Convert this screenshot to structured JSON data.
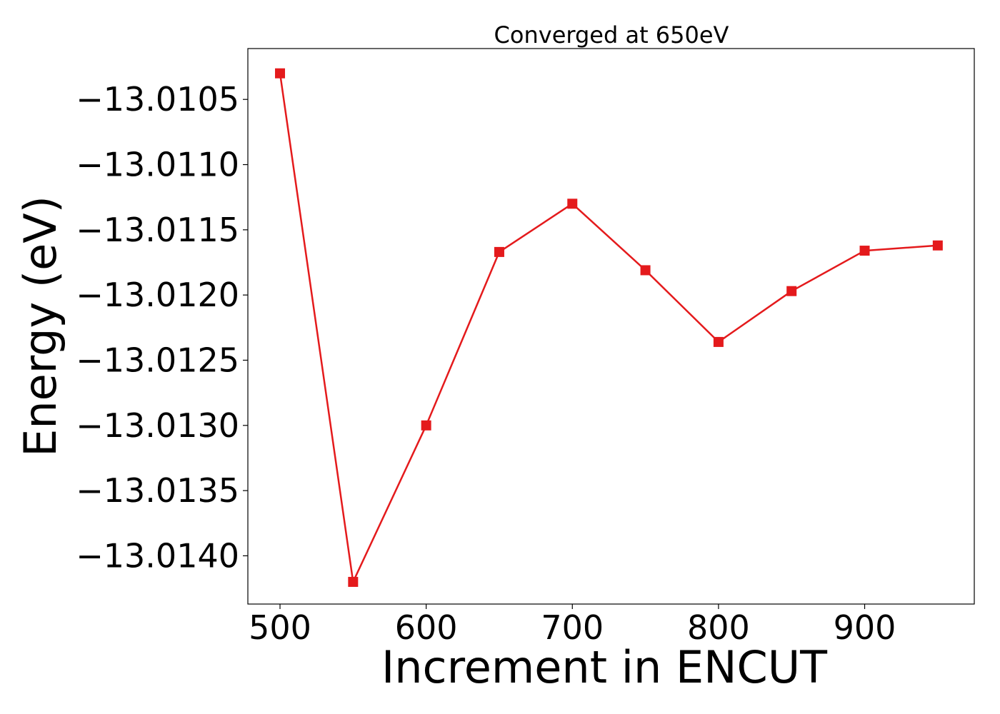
{
  "chart_data": {
    "type": "line",
    "title": "Converged at 650eV",
    "xlabel": "Increment in ENCUT",
    "ylabel": "Energy (eV)",
    "x": [
      500,
      550,
      600,
      650,
      700,
      750,
      800,
      850,
      900,
      950
    ],
    "series": [
      {
        "values": [
          -13.0103,
          -13.0142,
          -13.013,
          -13.01167,
          -13.0113,
          -13.01181,
          -13.01236,
          -13.01197,
          -13.01166,
          -13.01162
        ],
        "color": "#e41a1c",
        "marker": "square"
      }
    ],
    "xlim": [
      478,
      975
    ],
    "ylim": [
      -13.01437,
      -13.01011
    ],
    "xticks": [
      500,
      600,
      700,
      800,
      900
    ],
    "xtick_labels": [
      "500",
      "600",
      "700",
      "800",
      "900"
    ],
    "yticks": [
      -13.0105,
      -13.011,
      -13.0115,
      -13.012,
      -13.0125,
      -13.013,
      -13.0135,
      -13.014
    ],
    "ytick_labels": [
      "−13.0105",
      "−13.0110",
      "−13.0115",
      "−13.0120",
      "−13.0125",
      "−13.0130",
      "−13.0135",
      "−13.0140"
    ],
    "grid": false,
    "legend": "none"
  }
}
